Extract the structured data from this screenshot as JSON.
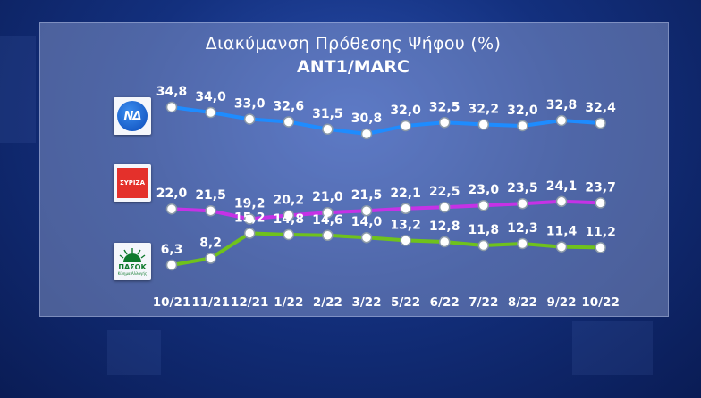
{
  "title": "Διακύμανση Πρόθεσης Ψήφου (%)",
  "subtitle": "ANT1/MARC",
  "logos": {
    "nd": "ΝΔ",
    "syriza": "ΣΥΡΙΖΑ",
    "pasok": "ΠΑΣΟΚ",
    "pasok_sub": "Κίνημα Αλλαγής"
  },
  "colors": {
    "nd": "#1e8cff",
    "syriza": "#c532e6",
    "pasok": "#6fc21c",
    "marker_fill": "#ffffff",
    "marker_stroke": "#8c9aa8"
  },
  "chart_data": {
    "type": "line",
    "title": "Διακύμανση Πρόθεσης Ψήφου (%)",
    "subtitle": "ANT1/MARC",
    "categories": [
      "10/21",
      "11/21",
      "12/21",
      "1/22",
      "2/22",
      "3/22",
      "5/22",
      "6/22",
      "7/22",
      "8/22",
      "9/22",
      "10/22"
    ],
    "grid": false,
    "legend": "logos-left",
    "series": [
      {
        "key": "nd",
        "values": [
          34.8,
          34.0,
          33.0,
          32.6,
          31.5,
          30.8,
          32.0,
          32.5,
          32.2,
          32.0,
          32.8,
          32.4
        ],
        "labels": [
          "34,8",
          "34,0",
          "33,0",
          "32,6",
          "31,5",
          "30,8",
          "32,0",
          "32,5",
          "32,2",
          "32,0",
          "32,8",
          "32,4"
        ]
      },
      {
        "key": "syriza",
        "values": [
          22.0,
          21.5,
          19.2,
          20.2,
          21.0,
          21.5,
          22.1,
          22.5,
          23.0,
          23.5,
          24.1,
          23.7
        ],
        "labels": [
          "22,0",
          "21,5",
          "19,2",
          "20,2",
          "21,0",
          "21,5",
          "22,1",
          "22,5",
          "23,0",
          "23,5",
          "24,1",
          "23,7"
        ]
      },
      {
        "key": "pasok",
        "values": [
          6.3,
          8.2,
          15.2,
          14.8,
          14.6,
          14.0,
          13.2,
          12.8,
          11.8,
          12.3,
          11.4,
          11.2
        ],
        "labels": [
          "6,3",
          "8,2",
          "15,2",
          "14,8",
          "14,6",
          "14,0",
          "13,2",
          "12,8",
          "11,8",
          "12,3",
          "11,4",
          "11,2"
        ]
      }
    ]
  }
}
